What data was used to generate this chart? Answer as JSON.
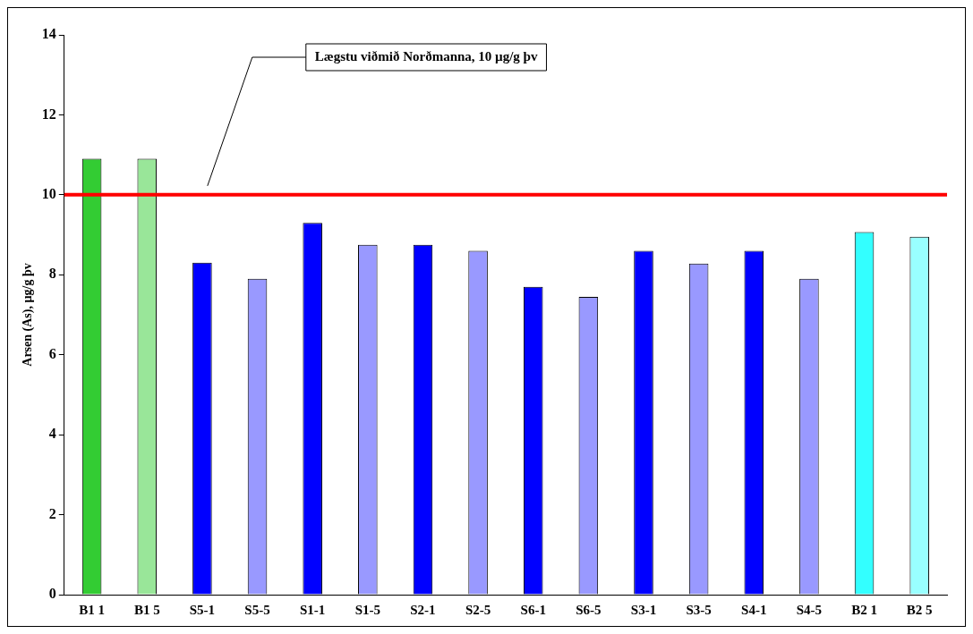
{
  "chart_data": {
    "type": "bar",
    "ylabel": "Arsen (As), µg/g þv",
    "categories": [
      "B1 1",
      "B1 5",
      "S5-1",
      "S5-5",
      "S1-1",
      "S1-5",
      "S2-1",
      "S2-5",
      "S6-1",
      "S6-5",
      "S3-1",
      "S3-5",
      "S4-1",
      "S4-5",
      "B2 1",
      "B2 5"
    ],
    "values": [
      10.9,
      10.9,
      8.3,
      7.9,
      9.3,
      8.75,
      8.75,
      8.6,
      7.7,
      7.45,
      8.6,
      8.28,
      8.6,
      7.9,
      9.07,
      8.95
    ],
    "colors": [
      "#33cc33",
      "#99e699",
      "#0000ff",
      "#9999ff",
      "#0000ff",
      "#9999ff",
      "#0000ff",
      "#9999ff",
      "#0000ff",
      "#9999ff",
      "#0000ff",
      "#9999ff",
      "#0000ff",
      "#9999ff",
      "#33ffff",
      "#99ffff"
    ],
    "ylim": [
      0,
      14
    ],
    "yticks": [
      0,
      2,
      4,
      6,
      8,
      10,
      12,
      14
    ],
    "grid": false,
    "legend": false,
    "ref_lines": [
      {
        "axis": "y",
        "value": 10,
        "label": "Lægstu viðmið Norðmanna, 10 µg/g þv",
        "color": "#ff0000"
      }
    ]
  }
}
